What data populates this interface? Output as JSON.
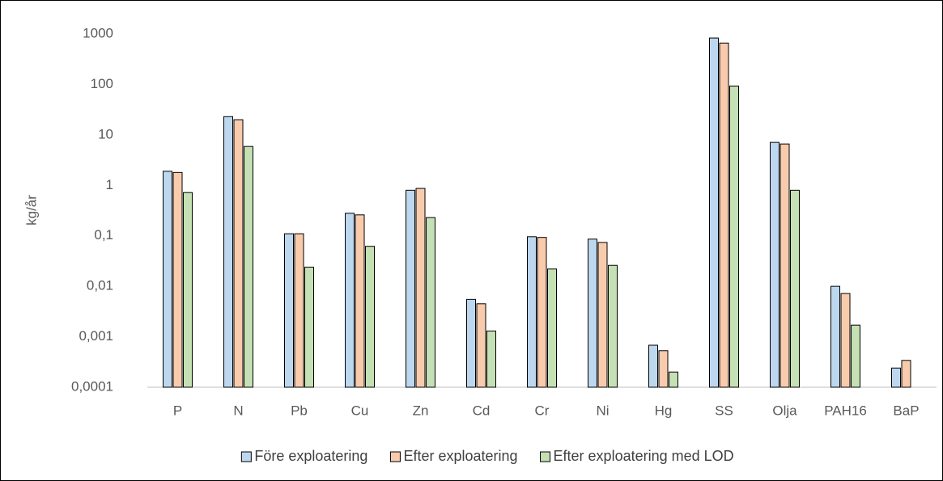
{
  "chart_data": {
    "type": "bar",
    "y_label": "kg/år",
    "log_scale": true,
    "grid": false,
    "categories": [
      "P",
      "N",
      "Pb",
      "Cu",
      "Zn",
      "Cd",
      "Cr",
      "Ni",
      "Hg",
      "SS",
      "Olja",
      "PAH16",
      "BaP"
    ],
    "series": [
      {
        "name": "Före exploatering",
        "color": "#bdd7ee",
        "values": [
          1.9,
          23,
          0.11,
          0.28,
          0.8,
          0.0055,
          0.096,
          0.086,
          0.00068,
          830,
          7.1,
          0.01,
          0.00024
        ]
      },
      {
        "name": "Efter exploatering",
        "color": "#f8cbad",
        "values": [
          1.8,
          20,
          0.11,
          0.26,
          0.87,
          0.0045,
          0.093,
          0.074,
          0.00053,
          660,
          6.6,
          0.0072,
          0.00034
        ]
      },
      {
        "name": "Efter exploatering med LOD",
        "color": "#c5e0b4",
        "values": [
          0.72,
          5.9,
          0.024,
          0.062,
          0.23,
          0.0013,
          0.022,
          0.026,
          0.0002,
          93,
          0.8,
          0.0017,
          null
        ]
      }
    ],
    "ylim": [
      0.0001,
      1000
    ],
    "yticks": [
      {
        "value": 0.0001,
        "label": "0,0001"
      },
      {
        "value": 0.001,
        "label": "0,001"
      },
      {
        "value": 0.01,
        "label": "0,01"
      },
      {
        "value": 0.1,
        "label": "0,1"
      },
      1,
      10,
      100,
      1000
    ],
    "legend_position": "bottom"
  }
}
